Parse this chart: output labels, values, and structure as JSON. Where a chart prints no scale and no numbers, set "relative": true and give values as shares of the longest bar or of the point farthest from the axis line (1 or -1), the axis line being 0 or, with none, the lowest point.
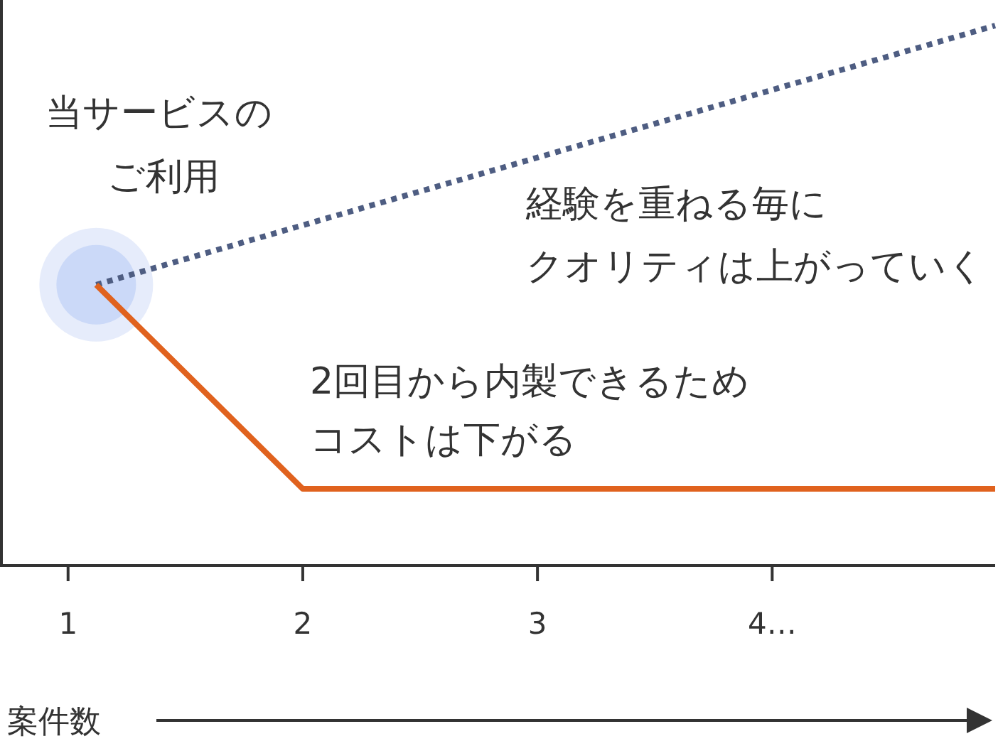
{
  "chart_data": {
    "type": "line",
    "relative": true,
    "xlabel": "案件数",
    "xlim": [
      0.71,
      4.95
    ],
    "xticks": [
      1,
      2,
      3,
      {
        "value": 4,
        "label": "4…"
      }
    ],
    "series": [
      {
        "type": "line",
        "color": "#4e5d82",
        "line_style": "dotted",
        "x": [
          1.12,
          4.95
        ],
        "values": [
          0.52,
          1
        ]
      },
      {
        "type": "line",
        "color": "#e0621e",
        "line_style": "solid",
        "x": [
          1.12,
          2,
          4.95
        ],
        "values": [
          0.52,
          0.142,
          0.142
        ]
      }
    ],
    "annotations": [
      "当サービスの",
      "ご利用",
      "経験を重ねる毎に",
      "クオリティは上がっていく",
      "2回目から内製できるため",
      "コストは下がる"
    ],
    "tick_labels": "x",
    "grid": false,
    "marker": "none"
  }
}
